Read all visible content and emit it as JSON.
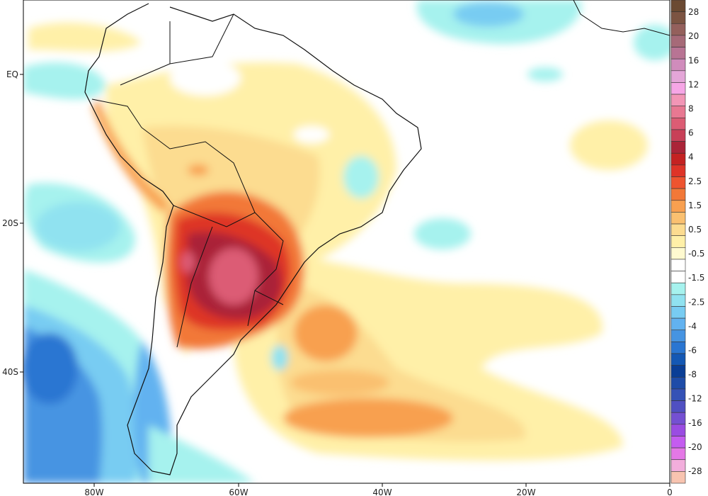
{
  "map": {
    "lat_labels": [
      "EQ",
      "20S",
      "40S"
    ],
    "lon_labels": [
      "80W",
      "60W",
      "40W",
      "20W",
      "0"
    ]
  },
  "colorbar": {
    "labels": [
      "28",
      "20",
      "16",
      "12",
      "8",
      "6",
      "4",
      "2.5",
      "1.5",
      "0.5",
      "-0.5",
      "-1.5",
      "-2.5",
      "-4",
      "-6",
      "-8",
      "-12",
      "-16",
      "-20",
      "-28"
    ],
    "colors": [
      "#6b4a32",
      "#7c5442",
      "#94605c",
      "#a66a78",
      "#b87494",
      "#d08cbc",
      "#e4a6d8",
      "#f6a6e6",
      "#f296b6",
      "#e87892",
      "#dc5c74",
      "#c84058",
      "#aa2438",
      "#c42222",
      "#de3428",
      "#ee5430",
      "#f27838",
      "#f8a050",
      "#fac070",
      "#fcdc90",
      "#fff0a8",
      "#fffad0",
      "#ffffff",
      "#ffffff",
      "#a6f2ee",
      "#90e2f0",
      "#78ccf2",
      "#62b2f0",
      "#4694e2",
      "#2a76d2",
      "#1458b4",
      "#0a3e96",
      "#1e4ca8",
      "#3452b6",
      "#5050c2",
      "#7450d2",
      "#9a4ce2",
      "#c45cf0",
      "#e478e6",
      "#f2aedc"
    ],
    "bottom_color": "#f8c4b0"
  }
}
